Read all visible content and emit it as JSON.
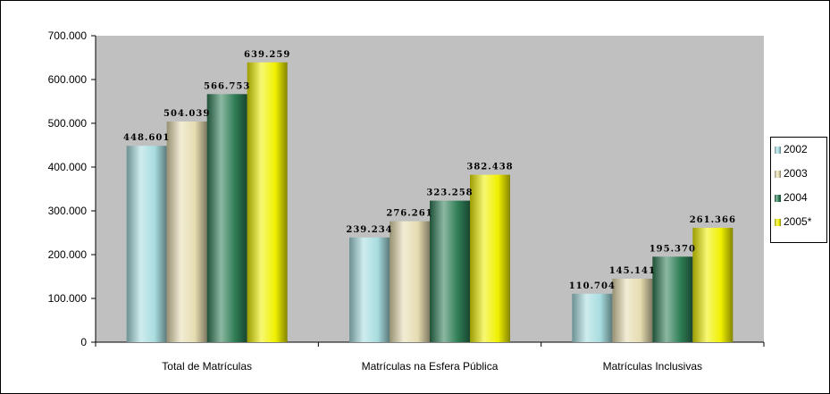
{
  "chart_data": {
    "type": "bar",
    "title": "",
    "xlabel": "",
    "ylabel": "",
    "categories": [
      "Total de Matrículas",
      "Matrículas na Esfera Pública",
      "Matrículas Inclusivas"
    ],
    "series": [
      {
        "name": "2002",
        "values": [
          448601,
          239234,
          110704
        ],
        "labels": [
          "448.601",
          "239.234",
          "110.704"
        ],
        "color": "#a8dde0"
      },
      {
        "name": "2003",
        "values": [
          504039,
          276261,
          145141
        ],
        "labels": [
          "504.039",
          "276.261",
          "145.141"
        ],
        "color": "#e6dcb0"
      },
      {
        "name": "2004",
        "values": [
          566753,
          323258,
          195370
        ],
        "labels": [
          "566.753",
          "323.258",
          "195.370"
        ],
        "color": "#2e7d55"
      },
      {
        "name": "2005*",
        "values": [
          639259,
          382438,
          261366
        ],
        "labels": [
          "639.259",
          "382.438",
          "261.366"
        ],
        "color": "#f0f000"
      }
    ],
    "ylim": [
      0,
      700000
    ],
    "yticks": [
      0,
      100000,
      200000,
      300000,
      400000,
      500000,
      600000,
      700000
    ],
    "ytick_labels": [
      "0",
      "100.000",
      "200.000",
      "300.000",
      "400.000",
      "500.000",
      "600.000",
      "700.000"
    ],
    "plot_background": "#c0c0c0",
    "grid": false,
    "legend_position": "right"
  }
}
